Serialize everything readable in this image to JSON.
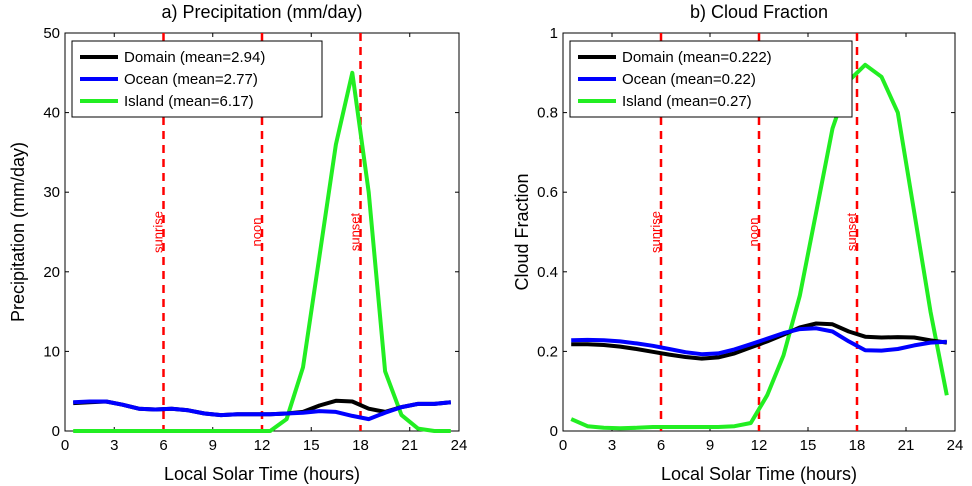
{
  "chart_data": [
    {
      "type": "line",
      "title": "a) Precipitation (mm/day)",
      "xlabel": "Local Solar Time (hours)",
      "ylabel": "Precipitation (mm/day)",
      "xlim": [
        0,
        24
      ],
      "ylim": [
        0,
        50
      ],
      "xticks": [
        0,
        3,
        6,
        9,
        12,
        15,
        18,
        21,
        24
      ],
      "yticks": [
        0,
        10,
        20,
        30,
        40,
        50
      ],
      "grid": false,
      "legend_position": "top-left",
      "series": [
        {
          "name": "Domain (mean=2.94)",
          "color": "#000000",
          "x": [
            0.5,
            1.5,
            2.5,
            3.5,
            4.5,
            5.5,
            6.5,
            7.5,
            8.5,
            9.5,
            10.5,
            11.5,
            12.5,
            13.5,
            14.5,
            15.5,
            16.5,
            17.5,
            18.5,
            19.5,
            20.5,
            21.5,
            22.5,
            23.5
          ],
          "y": [
            3.5,
            3.6,
            3.7,
            3.3,
            2.8,
            2.7,
            2.8,
            2.6,
            2.2,
            2.0,
            2.1,
            2.1,
            2.1,
            2.2,
            2.4,
            3.2,
            3.8,
            3.7,
            2.8,
            2.4,
            3.0,
            3.4,
            3.4,
            3.6
          ]
        },
        {
          "name": "Ocean (mean=2.77)",
          "color": "#0000ff",
          "x": [
            0.5,
            1.5,
            2.5,
            3.5,
            4.5,
            5.5,
            6.5,
            7.5,
            8.5,
            9.5,
            10.5,
            11.5,
            12.5,
            13.5,
            14.5,
            15.5,
            16.5,
            17.5,
            18.5,
            19.5,
            20.5,
            21.5,
            22.5,
            23.5
          ],
          "y": [
            3.6,
            3.7,
            3.7,
            3.3,
            2.8,
            2.7,
            2.8,
            2.6,
            2.2,
            2.0,
            2.1,
            2.1,
            2.1,
            2.2,
            2.3,
            2.5,
            2.4,
            1.9,
            1.5,
            2.3,
            3.0,
            3.4,
            3.4,
            3.6
          ]
        },
        {
          "name": "Island (mean=6.17)",
          "color": "#22ee22",
          "x": [
            0.5,
            1.5,
            2.5,
            3.5,
            4.5,
            5.5,
            6.5,
            7.5,
            8.5,
            9.5,
            10.5,
            11.5,
            12.5,
            13.5,
            14.5,
            15.5,
            16.5,
            17.5,
            18.5,
            19.5,
            20.5,
            21.5,
            22.5,
            23.5
          ],
          "y": [
            0,
            0,
            0,
            0,
            0,
            0,
            0,
            0,
            0,
            0,
            0,
            0,
            0,
            1.5,
            8,
            22,
            36,
            45,
            30,
            7.5,
            2,
            0.3,
            0,
            0
          ]
        }
      ],
      "vlines": [
        {
          "x": 6,
          "label": "sunrise",
          "color": "#ff0000"
        },
        {
          "x": 12,
          "label": "noon",
          "color": "#ff0000"
        },
        {
          "x": 18,
          "label": "sunset",
          "color": "#ff0000"
        }
      ]
    },
    {
      "type": "line",
      "title": "b) Cloud Fraction",
      "xlabel": "Local Solar Time (hours)",
      "ylabel": "Cloud Fraction",
      "xlim": [
        0,
        24
      ],
      "ylim": [
        0,
        1
      ],
      "xticks": [
        0,
        3,
        6,
        9,
        12,
        15,
        18,
        21,
        24
      ],
      "yticks": [
        0,
        0.2,
        0.4,
        0.6,
        0.8,
        1
      ],
      "ytick_labels": [
        "0",
        "0.2",
        "0.4",
        "0.6",
        "0.8",
        "1"
      ],
      "grid": false,
      "legend_position": "top-left",
      "series": [
        {
          "name": "Domain (mean=0.222)",
          "color": "#000000",
          "x": [
            0.5,
            1.5,
            2.5,
            3.5,
            4.5,
            5.5,
            6.5,
            7.5,
            8.5,
            9.5,
            10.5,
            11.5,
            12.5,
            13.5,
            14.5,
            15.5,
            16.5,
            17.5,
            18.5,
            19.5,
            20.5,
            21.5,
            22.5,
            23.5
          ],
          "y": [
            0.218,
            0.218,
            0.216,
            0.212,
            0.206,
            0.199,
            0.192,
            0.186,
            0.182,
            0.185,
            0.195,
            0.21,
            0.225,
            0.242,
            0.26,
            0.27,
            0.268,
            0.25,
            0.237,
            0.235,
            0.236,
            0.235,
            0.228,
            0.222
          ]
        },
        {
          "name": "Ocean (mean=0.22)",
          "color": "#0000ff",
          "x": [
            0.5,
            1.5,
            2.5,
            3.5,
            4.5,
            5.5,
            6.5,
            7.5,
            8.5,
            9.5,
            10.5,
            11.5,
            12.5,
            13.5,
            14.5,
            15.5,
            16.5,
            17.5,
            18.5,
            19.5,
            20.5,
            21.5,
            22.5,
            23.5
          ],
          "y": [
            0.228,
            0.229,
            0.228,
            0.225,
            0.22,
            0.214,
            0.206,
            0.198,
            0.193,
            0.195,
            0.205,
            0.218,
            0.232,
            0.246,
            0.256,
            0.258,
            0.25,
            0.225,
            0.203,
            0.202,
            0.206,
            0.215,
            0.222,
            0.224
          ]
        },
        {
          "name": "Island (mean=0.27)",
          "color": "#22ee22",
          "x": [
            0.5,
            1.5,
            2.5,
            3.5,
            4.5,
            5.5,
            6.5,
            7.5,
            8.5,
            9.5,
            10.5,
            11.5,
            12.5,
            13.5,
            14.5,
            15.5,
            16.5,
            17.5,
            18.5,
            19.5,
            20.5,
            21.5,
            22.5,
            23.5
          ],
          "y": [
            0.03,
            0.012,
            0.008,
            0.007,
            0.008,
            0.01,
            0.01,
            0.01,
            0.01,
            0.01,
            0.012,
            0.02,
            0.09,
            0.19,
            0.34,
            0.55,
            0.76,
            0.88,
            0.92,
            0.89,
            0.8,
            0.55,
            0.3,
            0.09
          ]
        }
      ],
      "vlines": [
        {
          "x": 6,
          "label": "sunrise",
          "color": "#ff0000"
        },
        {
          "x": 12,
          "label": "noon",
          "color": "#ff0000"
        },
        {
          "x": 18,
          "label": "sunset",
          "color": "#ff0000"
        }
      ]
    }
  ]
}
